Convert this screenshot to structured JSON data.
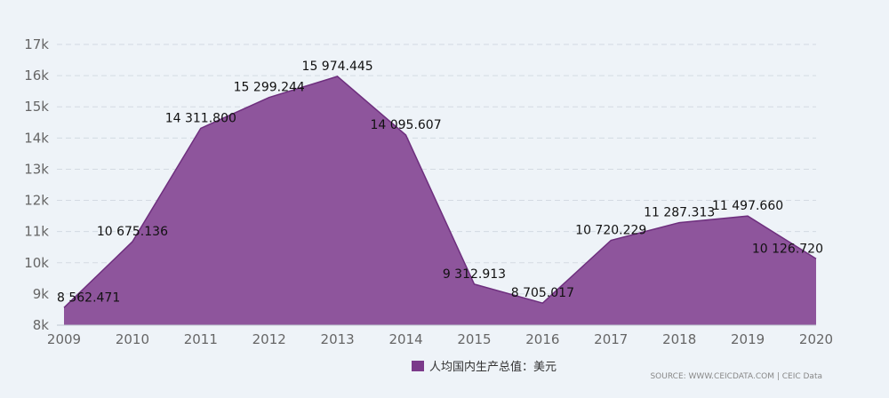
{
  "chart_data": {
    "type": "area",
    "categories": [
      "2009",
      "2010",
      "2011",
      "2012",
      "2013",
      "2014",
      "2015",
      "2016",
      "2017",
      "2018",
      "2019",
      "2020"
    ],
    "series": [
      {
        "name": "人均国内生产总值：美元",
        "values": [
          8562.471,
          10675.136,
          14311.8,
          15299.244,
          15974.445,
          14095.607,
          9312.913,
          8705.017,
          10720.229,
          11287.313,
          11497.66,
          10126.72
        ],
        "labels": [
          "8 562.471",
          "10 675.136",
          "14 311.800",
          "15 299.244",
          "15 974.445",
          "14 095.607",
          "9 312.913",
          "8 705.017",
          "10 720.229",
          "11 287.313",
          "11 497.660",
          "10 126.720"
        ],
        "color": "#7b3a8a"
      }
    ],
    "yticks": [
      8000,
      9000,
      10000,
      11000,
      12000,
      13000,
      14000,
      15000,
      16000,
      17000
    ],
    "ytick_labels": [
      "8k",
      "9k",
      "10k",
      "11k",
      "12k",
      "13k",
      "14k",
      "15k",
      "16k",
      "17k"
    ],
    "ylim": [
      8000,
      17000
    ],
    "grid": true,
    "legend_position": "bottom-center",
    "fill_color": "#8e559c",
    "line_color": "#6e2f7e"
  },
  "source": "SOURCE: WWW.CEICDATA.COM | CEIC Data"
}
